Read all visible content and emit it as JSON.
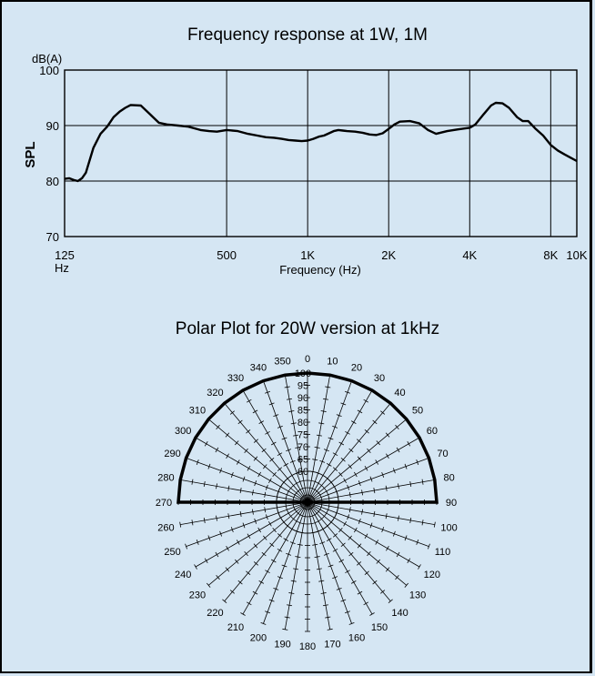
{
  "charts": {
    "frequency_response": {
      "title": "Frequency response at 1W, 1M",
      "ylabel": "SPL",
      "yunit": "dB(A)",
      "xlabel": "Frequency (Hz)",
      "x_ticks": [
        {
          "value": 125,
          "label": "125",
          "sub": "Hz"
        },
        {
          "value": 500,
          "label": "500"
        },
        {
          "value": 1000,
          "label": "1K"
        },
        {
          "value": 2000,
          "label": "2K"
        },
        {
          "value": 4000,
          "label": "4K"
        },
        {
          "value": 8000,
          "label": "8K"
        },
        {
          "value": 10000,
          "label": "10K"
        }
      ],
      "y_ticks": [
        {
          "value": 70,
          "label": "70"
        },
        {
          "value": 80,
          "label": "80"
        },
        {
          "value": 90,
          "label": "90"
        },
        {
          "value": 100,
          "label": "100"
        }
      ]
    },
    "polar_plot": {
      "title": "Polar Plot for 20W version at 1kHz",
      "angle_labels": [
        "0",
        "10",
        "20",
        "30",
        "40",
        "50",
        "60",
        "70",
        "80",
        "90",
        "100",
        "110",
        "120",
        "130",
        "140",
        "150",
        "160",
        "170",
        "180",
        "190",
        "200",
        "210",
        "220",
        "230",
        "240",
        "250",
        "260",
        "270",
        "280",
        "290",
        "300",
        "310",
        "320",
        "330",
        "340",
        "350"
      ],
      "db_labels": [
        "60",
        "65",
        "70",
        "75",
        "80",
        "85",
        "90",
        "95",
        "100"
      ]
    }
  },
  "chart_data": [
    {
      "type": "line",
      "title": "Frequency response at 1W, 1M",
      "xlabel": "Frequency (Hz)",
      "ylabel": "SPL",
      "xscale": "log",
      "xlim": [
        125,
        10000
      ],
      "ylim": [
        70,
        100
      ],
      "grid": true,
      "series": [
        {
          "x": [
            125,
            130,
            135,
            140,
            145,
            150,
            160,
            170,
            180,
            190,
            200,
            210,
            220,
            240,
            260,
            280,
            300,
            330,
            360,
            400,
            430,
            460,
            500,
            550,
            600,
            650,
            700,
            750,
            800,
            850,
            900,
            950,
            1000,
            1050,
            1100,
            1150,
            1200,
            1250,
            1300,
            1350,
            1400,
            1500,
            1600,
            1700,
            1800,
            1900,
            2000,
            2100,
            2200,
            2400,
            2600,
            2800,
            3000,
            3300,
            3600,
            4000,
            4200,
            4500,
            4800,
            5000,
            5300,
            5600,
            6000,
            6300,
            6600,
            7000,
            7500,
            8000,
            8500,
            9000,
            9500,
            10000
          ],
          "y": [
            80.4,
            80.5,
            80.2,
            80.0,
            80.5,
            81.5,
            86.0,
            88.5,
            89.8,
            91.5,
            92.5,
            93.2,
            93.7,
            93.6,
            92.0,
            90.5,
            90.2,
            90.0,
            89.8,
            89.2,
            89.0,
            88.9,
            89.2,
            89.0,
            88.5,
            88.2,
            87.9,
            87.8,
            87.6,
            87.4,
            87.3,
            87.2,
            87.3,
            87.6,
            88.0,
            88.2,
            88.6,
            89.0,
            89.2,
            89.1,
            89.0,
            88.9,
            88.7,
            88.4,
            88.3,
            88.6,
            89.4,
            90.2,
            90.7,
            90.8,
            90.4,
            89.2,
            88.5,
            89.0,
            89.3,
            89.6,
            90.2,
            92.0,
            93.6,
            94.1,
            94.0,
            93.2,
            91.5,
            90.8,
            90.8,
            89.5,
            88.2,
            86.5,
            85.5,
            84.8,
            84.2,
            83.6
          ]
        }
      ]
    },
    {
      "type": "polar",
      "title": "Polar Plot for 20W version at 1kHz",
      "theta_deg": [
        270,
        280,
        290,
        300,
        310,
        320,
        330,
        340,
        350,
        0,
        10,
        20,
        30,
        40,
        50,
        60,
        70,
        80,
        90
      ],
      "r": [
        100,
        100,
        100,
        100,
        100,
        100,
        100,
        100,
        100,
        100,
        100,
        100,
        100,
        100,
        100,
        100,
        100,
        100,
        100
      ],
      "rlim": [
        60,
        100
      ],
      "r_ticks": [
        60,
        65,
        70,
        75,
        80,
        85,
        90,
        95,
        100
      ],
      "angle_step_deg": 10
    }
  ]
}
